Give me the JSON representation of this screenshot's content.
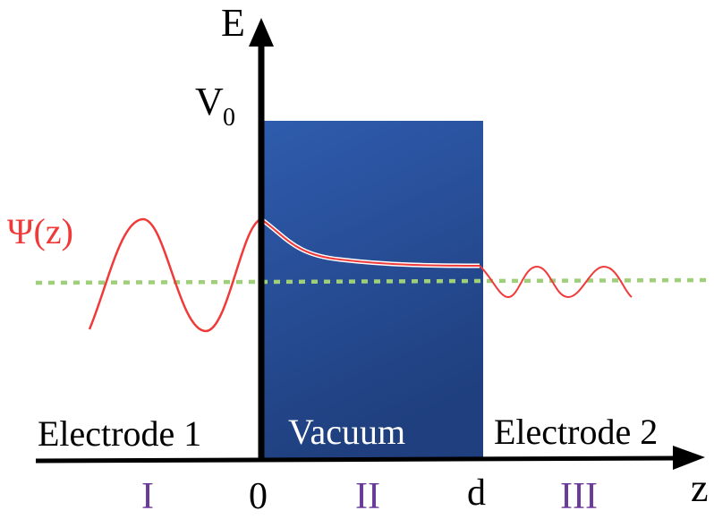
{
  "axes": {
    "y_label": "E",
    "x_label": "z",
    "barrier_label_base": "V",
    "barrier_label_sub": "0",
    "origin_tick": "0",
    "barrier_end_tick": "d"
  },
  "wavefunction": {
    "label": "Ψ(z)"
  },
  "regions": {
    "left_name": "Electrode 1",
    "middle_name": "Vacuum",
    "right_name": "Electrode 2",
    "left_numeral": "I",
    "middle_numeral": "II",
    "right_numeral": "III"
  },
  "colors": {
    "barrier": "#2c56a8",
    "barrier_dark": "#1e3d7a",
    "wavefunction": "#f03a3a",
    "energy_level": "#9fcf78",
    "numerals": "#6a3a9a",
    "axis": "#000000"
  }
}
